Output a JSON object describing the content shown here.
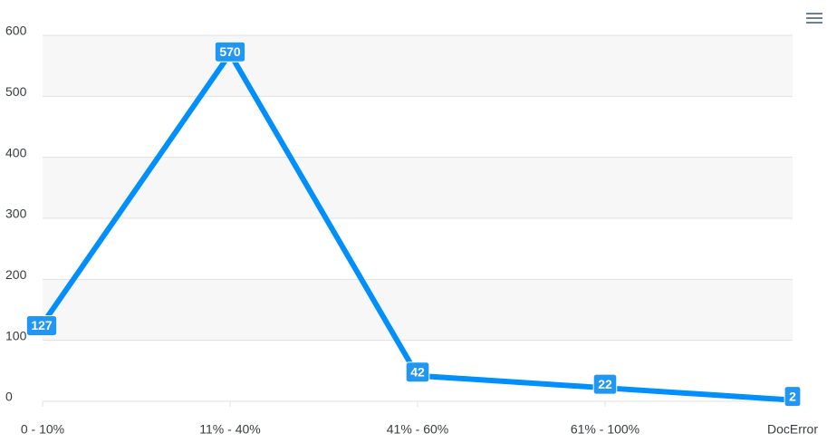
{
  "chart_data": {
    "type": "line",
    "categories": [
      "0 - 10%",
      "11% - 40%",
      "41% - 60%",
      "61% - 100%",
      "DocError"
    ],
    "series": [
      {
        "color": "#008ffb",
        "values": [
          127,
          570,
          42,
          22,
          2
        ]
      }
    ],
    "ylim": [
      0,
      600
    ],
    "yticks": [
      0,
      100,
      200,
      300,
      400,
      500,
      600
    ],
    "grid": true
  }
}
